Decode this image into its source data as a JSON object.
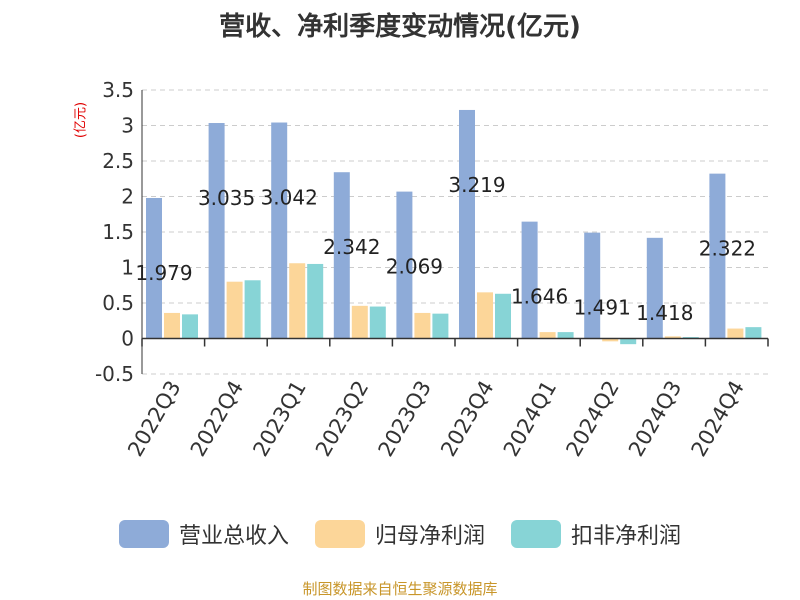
{
  "title": "营收、净利季度变动情况(亿元)",
  "unit_label": "(亿元)",
  "source": "制图数据来自恒生聚源数据库",
  "colors": {
    "revenue": "#8eabd8",
    "net_profit": "#fcd699",
    "deducted_net_profit": "#87d4d6",
    "grid": "#cccccc",
    "axis": "#333333",
    "label": "#222222"
  },
  "chart_data": {
    "type": "bar",
    "title": "营收、净利季度变动情况(亿元)",
    "ylabel": "(亿元)",
    "categories": [
      "2022Q3",
      "2022Q4",
      "2023Q1",
      "2023Q2",
      "2023Q3",
      "2023Q4",
      "2024Q1",
      "2024Q2",
      "2024Q3",
      "2024Q4"
    ],
    "ylim": [
      -0.5,
      3.5
    ],
    "yticks": [
      "3.5",
      "3",
      "2.5",
      "2",
      "1.5",
      "1",
      "0.5",
      "0",
      "-0.5"
    ],
    "grid": true,
    "legend_position": "bottom",
    "data_labels_series": "营业总收入",
    "series": [
      {
        "name": "营业总收入",
        "values": [
          1.979,
          3.035,
          3.042,
          2.342,
          2.069,
          3.219,
          1.646,
          1.491,
          1.418,
          2.322
        ],
        "labels": [
          "1.979",
          "3.035",
          "3.042",
          "2.342",
          "2.069",
          "3.219",
          "1.646",
          "1.491",
          "1.418",
          "2.322"
        ]
      },
      {
        "name": "归母净利润",
        "values": [
          0.36,
          0.8,
          1.06,
          0.46,
          0.36,
          0.65,
          0.09,
          -0.04,
          0.03,
          0.14
        ]
      },
      {
        "name": "扣非净利润",
        "values": [
          0.34,
          0.82,
          1.05,
          0.45,
          0.35,
          0.63,
          0.09,
          -0.08,
          0.02,
          0.16
        ]
      }
    ]
  },
  "legend": [
    {
      "label": "营业总收入",
      "color": "#8eabd8"
    },
    {
      "label": "归母净利润",
      "color": "#fcd699"
    },
    {
      "label": "扣非净利润",
      "color": "#87d4d6"
    }
  ]
}
